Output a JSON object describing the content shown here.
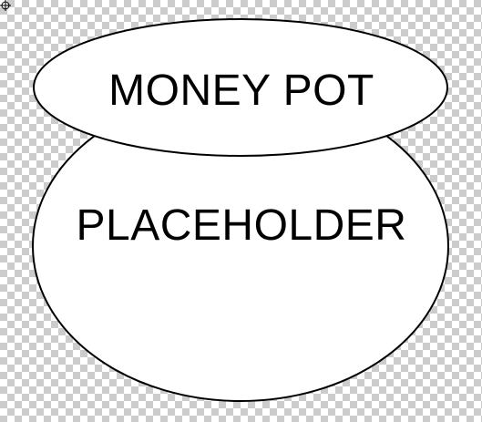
{
  "lid": {
    "label": "MONEY POT"
  },
  "pot_body": {
    "label": "PLACEHOLDER"
  },
  "colors": {
    "fill": "#ffffff",
    "stroke": "#000000",
    "checker_light": "#ffffff",
    "checker_dark": "#cccccc"
  },
  "icons": {
    "cursor": "crosshair-cursor-icon"
  }
}
